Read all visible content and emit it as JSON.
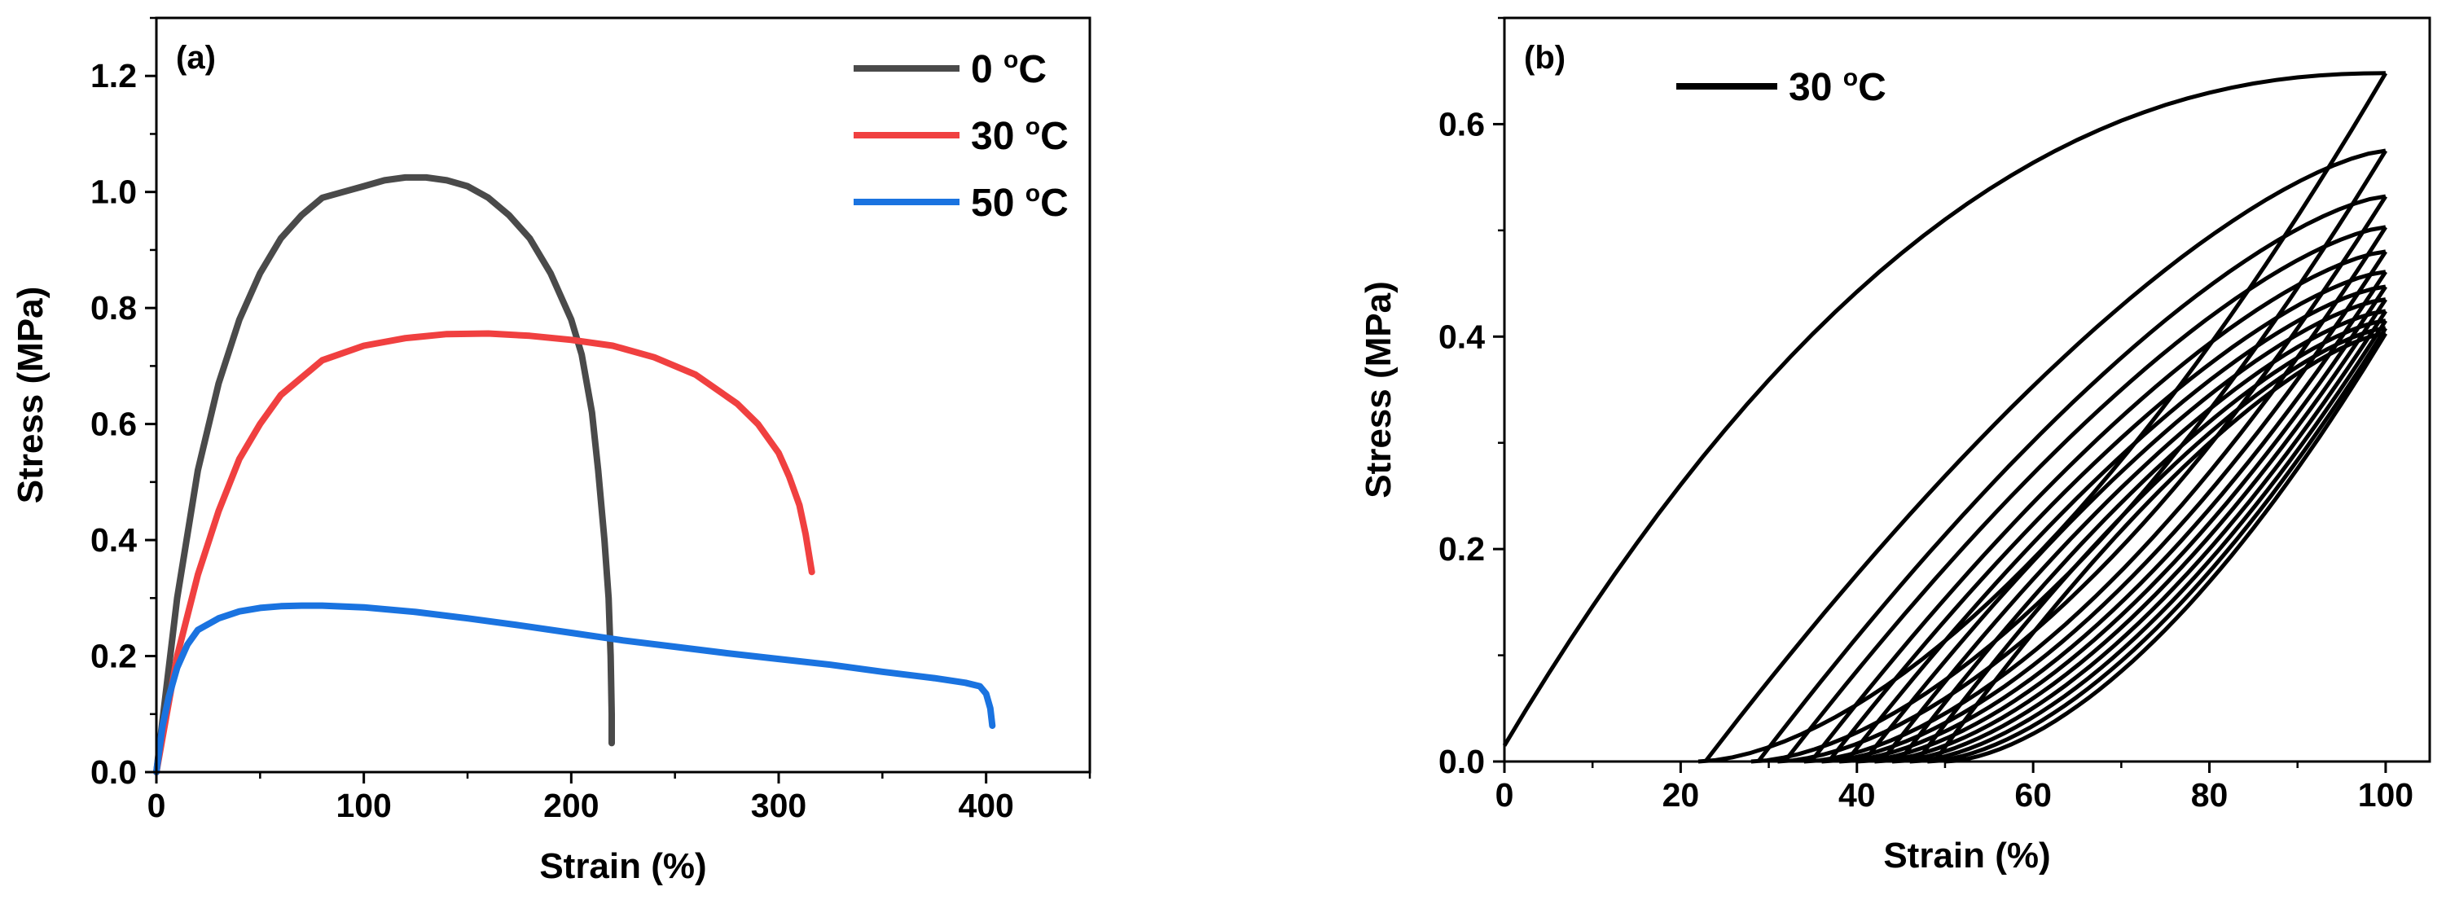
{
  "chart_data": [
    {
      "type": "line",
      "panel_label": "(a)",
      "xlabel": "Strain (%)",
      "ylabel": "Stress (MPa)",
      "xlim": [
        0,
        450
      ],
      "ylim": [
        0,
        1.3
      ],
      "xticks": [
        0,
        100,
        200,
        300,
        400
      ],
      "xtick_labels": [
        "0",
        "100",
        "200",
        "300",
        "400"
      ],
      "yticks": [
        0,
        0.2,
        0.4,
        0.6,
        0.8,
        1.0,
        1.2
      ],
      "ytick_labels": [
        "0.0",
        "0.2",
        "0.4",
        "0.6",
        "0.8",
        "1.0",
        "1.2"
      ],
      "legend_position": "top-right",
      "series": [
        {
          "name": "0 °C",
          "label_main": "0 ",
          "label_sup": "o",
          "label_end": "C",
          "color": "#4a4a4a",
          "x": [
            0,
            5,
            10,
            20,
            30,
            40,
            50,
            60,
            70,
            80,
            90,
            100,
            110,
            120,
            130,
            140,
            150,
            160,
            170,
            180,
            190,
            200,
            205,
            210,
            213,
            216,
            218,
            219,
            219.5,
            219.5
          ],
          "y": [
            0,
            0.15,
            0.3,
            0.52,
            0.67,
            0.78,
            0.86,
            0.92,
            0.96,
            0.99,
            1.0,
            1.01,
            1.02,
            1.025,
            1.025,
            1.02,
            1.01,
            0.99,
            0.96,
            0.92,
            0.86,
            0.78,
            0.72,
            0.62,
            0.52,
            0.4,
            0.3,
            0.2,
            0.1,
            0.05
          ]
        },
        {
          "name": "30 °C",
          "label_main": "30 ",
          "label_sup": "o",
          "label_end": "C",
          "color": "#f04040",
          "x": [
            0,
            5,
            10,
            20,
            30,
            40,
            50,
            60,
            70,
            80,
            100,
            120,
            140,
            160,
            180,
            200,
            220,
            240,
            260,
            280,
            290,
            300,
            305,
            310,
            313,
            316
          ],
          "y": [
            0,
            0.1,
            0.2,
            0.34,
            0.45,
            0.54,
            0.6,
            0.65,
            0.68,
            0.71,
            0.735,
            0.748,
            0.755,
            0.756,
            0.752,
            0.745,
            0.735,
            0.715,
            0.685,
            0.635,
            0.6,
            0.55,
            0.51,
            0.46,
            0.41,
            0.345
          ]
        },
        {
          "name": "50 °C",
          "label_main": "50 ",
          "label_sup": "o",
          "label_end": "C",
          "color": "#1a73e0",
          "x": [
            0,
            3,
            6,
            10,
            15,
            20,
            30,
            40,
            50,
            60,
            70,
            80,
            100,
            125,
            150,
            175,
            200,
            225,
            250,
            275,
            300,
            325,
            350,
            375,
            390,
            397,
            400,
            402,
            403
          ],
          "y": [
            0,
            0.08,
            0.13,
            0.18,
            0.22,
            0.245,
            0.265,
            0.277,
            0.283,
            0.286,
            0.287,
            0.287,
            0.284,
            0.276,
            0.265,
            0.253,
            0.24,
            0.227,
            0.216,
            0.205,
            0.195,
            0.185,
            0.173,
            0.162,
            0.154,
            0.148,
            0.135,
            0.11,
            0.08
          ]
        }
      ]
    },
    {
      "type": "line",
      "panel_label": "(b)",
      "xlabel": "Strain (%)",
      "ylabel": "Stress (MPa)",
      "xlim": [
        0,
        105
      ],
      "ylim": [
        0,
        0.7
      ],
      "xticks": [
        0,
        20,
        40,
        60,
        80,
        100
      ],
      "xtick_labels": [
        "0",
        "20",
        "40",
        "60",
        "80",
        "100"
      ],
      "yticks": [
        0,
        0.2,
        0.4,
        0.6
      ],
      "ytick_labels": [
        "0.0",
        "0.2",
        "0.4",
        "0.6"
      ],
      "legend_position": "top-left",
      "legend": [
        {
          "name": "30 °C",
          "label_main": "30 ",
          "label_sup": "o",
          "label_end": "C",
          "color": "#000000"
        }
      ],
      "cyclic_loops": {
        "max_strain": 100,
        "first_loading": {
          "peak_stress": 0.648,
          "start_strain": 0,
          "start_stress": 0.015
        },
        "cycles": [
          {
            "cycle": 1,
            "peak_stress": 0.648,
            "residual_strain": 22
          },
          {
            "cycle": 2,
            "peak_stress": 0.575,
            "residual_strain": 28
          },
          {
            "cycle": 3,
            "peak_stress": 0.532,
            "residual_strain": 31
          },
          {
            "cycle": 4,
            "peak_stress": 0.503,
            "residual_strain": 34
          },
          {
            "cycle": 5,
            "peak_stress": 0.48,
            "residual_strain": 36
          },
          {
            "cycle": 6,
            "peak_stress": 0.461,
            "residual_strain": 38
          },
          {
            "cycle": 7,
            "peak_stress": 0.447,
            "residual_strain": 40
          },
          {
            "cycle": 8,
            "peak_stress": 0.435,
            "residual_strain": 42
          },
          {
            "cycle": 9,
            "peak_stress": 0.424,
            "residual_strain": 44
          },
          {
            "cycle": 10,
            "peak_stress": 0.415,
            "residual_strain": 46
          },
          {
            "cycle": 11,
            "peak_stress": 0.408,
            "residual_strain": 48
          },
          {
            "cycle": 12,
            "peak_stress": 0.403,
            "residual_strain": 50
          }
        ]
      }
    }
  ]
}
